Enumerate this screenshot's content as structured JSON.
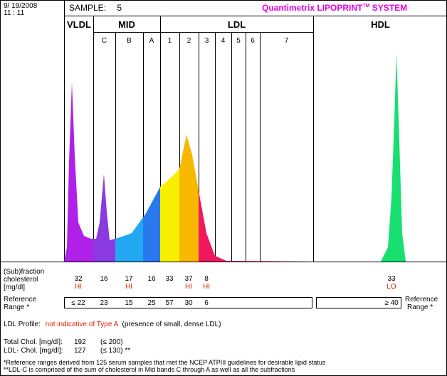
{
  "header": {
    "date": "9/ 19/2008",
    "time": "11 : 11",
    "sample_label": "SAMPLE:",
    "sample_number": "5",
    "brand": "Quantimetrix LIPOPRINT",
    "brand_tm": "TM",
    "brand_suffix": " SYSTEM"
  },
  "bands": {
    "groups": [
      "VLDL",
      "MID",
      "LDL",
      "HDL"
    ],
    "mid": [
      "C",
      "B",
      "A"
    ],
    "ldl": [
      "1",
      "2",
      "3",
      "4",
      "5",
      "6",
      "7"
    ]
  },
  "table": {
    "row_label_line1": "(Sub)fraction",
    "row_label_line2": "cholesterol",
    "row_label_line3": "[mg/dl]",
    "ref_label_line1": "Reference",
    "ref_label_line2": "Range *",
    "ref_right_line1": "Reference",
    "ref_right_line2": "Range *"
  },
  "chart_data": {
    "type": "table",
    "columns": [
      "VLDL",
      "C",
      "B",
      "A",
      "1",
      "2",
      "3",
      "4",
      "5",
      "6",
      "7",
      "HDL"
    ],
    "cholesterol_mg_dl": [
      "32",
      "16",
      "17",
      "16",
      "33",
      "37",
      "8",
      "",
      "",
      "",
      "",
      "33"
    ],
    "flags": [
      "HI",
      "",
      "HI",
      "",
      "",
      "HI",
      "HI",
      "",
      "",
      "",
      "",
      "LO"
    ],
    "reference_range": [
      "≤ 22",
      "23",
      "15",
      "25",
      "57",
      "30",
      "6",
      "",
      "",
      "",
      "",
      "≥ 40"
    ],
    "densitometry_peaks": [
      {
        "band": "VLDL",
        "height": 0.82
      },
      {
        "band": "C",
        "height": 0.4
      },
      {
        "band": "2",
        "height": 0.58
      },
      {
        "band": "HDL",
        "height": 0.95
      }
    ],
    "colors": {
      "VLDL": "#b020e8",
      "C": "#8a3ae0",
      "B": "#22a8f0",
      "A": "#2a78f0",
      "1": "#f8f000",
      "2": "#f8b800",
      "3": "#f01860",
      "HDL": "#18e070"
    }
  },
  "profile": {
    "label": "LDL Profile:",
    "result": "not indicative of Type A",
    "note": "(presence of small, dense LDL)"
  },
  "totals": {
    "total_label": "Total Chol. [mg/dl]:",
    "total_value": "192",
    "total_ref": "(≤ 200)",
    "ldl_label": "LDL- Chol. [mg/dl]:",
    "ldl_value": "127",
    "ldl_ref": "(≤ 130) **"
  },
  "footnotes": {
    "line1": "*Reference ranges derived from 125 serum samples that met the NCEP ATPIII guidelines for desirable lipid status",
    "line2": "**LDL-C is comprised of the sum of cholesterol in Mid bands C through A as well as all the subfractions"
  }
}
